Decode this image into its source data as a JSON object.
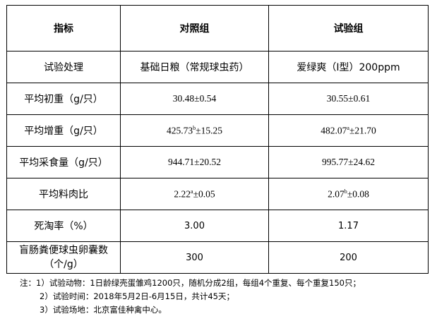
{
  "headers": [
    "指标",
    "对照组",
    "试验组"
  ],
  "rows": [
    {
      "label": "试验处理",
      "control": "基础日粮（常规球虫药）",
      "test": "爱绿爽（Ⅰ型）200ppm"
    },
    {
      "label": "平均初重（g/只）",
      "control": "30.48±0.54",
      "test": "30.55±0.61"
    },
    {
      "label": "平均增重（g/只）",
      "control_v": "425.73",
      "control_sup": "b",
      "control_e": "±15.25",
      "test_v": "482.07",
      "test_sup": "a",
      "test_e": "±21.70"
    },
    {
      "label": "平均采食量（g/只）",
      "control": "944.71±20.52",
      "test": "995.77±24.62"
    },
    {
      "label": "平均料肉比",
      "control_v": "2.22",
      "control_sup": "a",
      "control_e": "±0.05",
      "test_v": "2.07",
      "test_sup": "b",
      "test_e": "±0.08"
    },
    {
      "label": "死淘率（%）",
      "control": "3.00",
      "test": "1.17"
    },
    {
      "label": "盲肠粪便球虫卵囊数（个/g）",
      "control": "300",
      "test": "200"
    }
  ],
  "notes": [
    "注：1）试验动物：1日龄绿壳蛋雏鸡1200只，随机分成2组，每组4个重复、每个重复150只；",
    "2）试验时间：2018年5月2日-6月15日，共计45天；",
    "3）试验场地：北京富佳种禽中心。"
  ]
}
